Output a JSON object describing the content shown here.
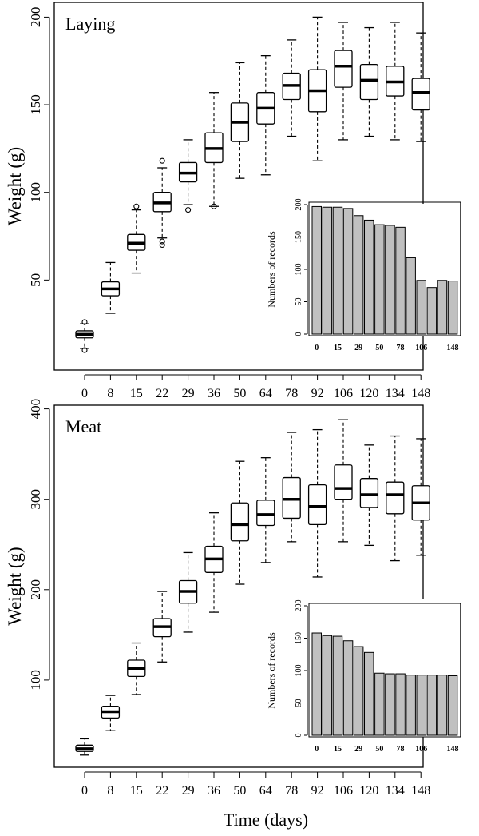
{
  "figure": {
    "xlabel": "Time (days)"
  },
  "chart_data": [
    {
      "type": "boxplot",
      "title": "Laying",
      "ylabel": "Weight (g)",
      "ylim": [
        0,
        200
      ],
      "yticks": [
        50,
        100,
        150,
        200
      ],
      "categories": [
        "0",
        "8",
        "15",
        "22",
        "29",
        "36",
        "50",
        "64",
        "78",
        "92",
        "106",
        "120",
        "134",
        "148"
      ],
      "boxes": [
        {
          "whislo": 11,
          "q1": 17,
          "med": 19,
          "q3": 21,
          "whishi": 25,
          "outliers": [
            10,
            26
          ]
        },
        {
          "whislo": 31,
          "q1": 41,
          "med": 45,
          "q3": 49,
          "whishi": 60,
          "outliers": []
        },
        {
          "whislo": 54,
          "q1": 67,
          "med": 71,
          "q3": 76,
          "whishi": 90,
          "outliers": [
            92
          ]
        },
        {
          "whislo": 74,
          "q1": 89,
          "med": 94,
          "q3": 100,
          "whishi": 114,
          "outliers": [
            70,
            72,
            118
          ]
        },
        {
          "whislo": 93,
          "q1": 106,
          "med": 111,
          "q3": 117,
          "whishi": 130,
          "outliers": [
            90
          ]
        },
        {
          "whislo": 92,
          "q1": 117,
          "med": 125,
          "q3": 134,
          "whishi": 157,
          "outliers": [
            92
          ]
        },
        {
          "whislo": 108,
          "q1": 129,
          "med": 140,
          "q3": 151,
          "whishi": 174,
          "outliers": []
        },
        {
          "whislo": 110,
          "q1": 139,
          "med": 148,
          "q3": 157,
          "whishi": 178,
          "outliers": []
        },
        {
          "whislo": 132,
          "q1": 153,
          "med": 161,
          "q3": 168,
          "whishi": 187,
          "outliers": []
        },
        {
          "whislo": 118,
          "q1": 146,
          "med": 158,
          "q3": 170,
          "whishi": 200,
          "outliers": []
        },
        {
          "whislo": 130,
          "q1": 160,
          "med": 172,
          "q3": 181,
          "whishi": 197,
          "outliers": []
        },
        {
          "whislo": 132,
          "q1": 153,
          "med": 164,
          "q3": 173,
          "whishi": 194,
          "outliers": []
        },
        {
          "whislo": 130,
          "q1": 155,
          "med": 163,
          "q3": 172,
          "whishi": 197,
          "outliers": []
        },
        {
          "whislo": 129,
          "q1": 147,
          "med": 157,
          "q3": 165,
          "whishi": 191,
          "outliers": []
        }
      ],
      "inset": {
        "type": "bar",
        "ylabel": "Numbers of records",
        "ylim": [
          0,
          200
        ],
        "yticks": [
          0,
          50,
          100,
          150,
          200
        ],
        "categories": [
          "0",
          "8",
          "15",
          "22",
          "29",
          "36",
          "50",
          "64",
          "78",
          "92",
          "106",
          "120",
          "134",
          "148"
        ],
        "xtick_labels": [
          "0",
          "15",
          "29",
          "50",
          "78",
          "106",
          "148"
        ],
        "values": [
          197,
          196,
          196,
          194,
          183,
          176,
          169,
          168,
          165,
          118,
          83,
          72,
          83,
          82
        ]
      }
    },
    {
      "type": "boxplot",
      "title": "Meat",
      "ylabel": "Weight (g)",
      "ylim": [
        0,
        400
      ],
      "yticks": [
        100,
        200,
        300,
        400
      ],
      "categories": [
        "0",
        "8",
        "15",
        "22",
        "29",
        "36",
        "50",
        "64",
        "78",
        "92",
        "106",
        "120",
        "134",
        "148"
      ],
      "boxes": [
        {
          "whislo": 17,
          "q1": 21,
          "med": 24,
          "q3": 28,
          "whishi": 35,
          "outliers": []
        },
        {
          "whislo": 44,
          "q1": 58,
          "med": 65,
          "q3": 71,
          "whishi": 83,
          "outliers": []
        },
        {
          "whislo": 84,
          "q1": 104,
          "med": 113,
          "q3": 122,
          "whishi": 141,
          "outliers": []
        },
        {
          "whislo": 120,
          "q1": 148,
          "med": 159,
          "q3": 168,
          "whishi": 198,
          "outliers": []
        },
        {
          "whislo": 153,
          "q1": 185,
          "med": 198,
          "q3": 210,
          "whishi": 241,
          "outliers": []
        },
        {
          "whislo": 175,
          "q1": 219,
          "med": 234,
          "q3": 248,
          "whishi": 285,
          "outliers": []
        },
        {
          "whislo": 206,
          "q1": 254,
          "med": 272,
          "q3": 296,
          "whishi": 342,
          "outliers": []
        },
        {
          "whislo": 230,
          "q1": 271,
          "med": 283,
          "q3": 299,
          "whishi": 346,
          "outliers": []
        },
        {
          "whislo": 253,
          "q1": 279,
          "med": 300,
          "q3": 324,
          "whishi": 374,
          "outliers": []
        },
        {
          "whislo": 214,
          "q1": 272,
          "med": 292,
          "q3": 316,
          "whishi": 377,
          "outliers": []
        },
        {
          "whislo": 253,
          "q1": 300,
          "med": 312,
          "q3": 338,
          "whishi": 388,
          "outliers": []
        },
        {
          "whislo": 249,
          "q1": 291,
          "med": 305,
          "q3": 323,
          "whishi": 360,
          "outliers": []
        },
        {
          "whislo": 232,
          "q1": 284,
          "med": 305,
          "q3": 319,
          "whishi": 370,
          "outliers": []
        },
        {
          "whislo": 238,
          "q1": 277,
          "med": 296,
          "q3": 315,
          "whishi": 367,
          "outliers": []
        }
      ],
      "inset": {
        "type": "bar",
        "ylabel": "Numbers of records",
        "ylim": [
          0,
          200
        ],
        "yticks": [
          0,
          50,
          100,
          150,
          200
        ],
        "categories": [
          "0",
          "8",
          "15",
          "22",
          "29",
          "36",
          "50",
          "64",
          "78",
          "92",
          "106",
          "120",
          "134",
          "148"
        ],
        "xtick_labels": [
          "0",
          "15",
          "29",
          "50",
          "78",
          "106",
          "148"
        ],
        "values": [
          158,
          154,
          153,
          146,
          137,
          128,
          96,
          95,
          95,
          93,
          93,
          93,
          93,
          92
        ]
      }
    }
  ]
}
